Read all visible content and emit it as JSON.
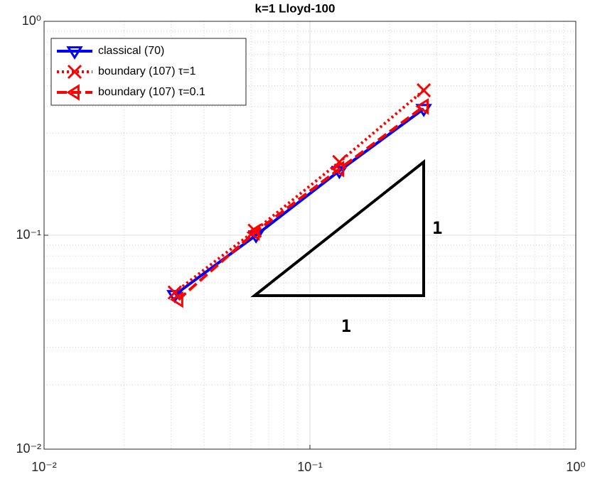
{
  "chart_data": {
    "type": "line",
    "title": "k=1 Lloyd-100",
    "log_x": true,
    "log_y": true,
    "grid": true,
    "legend": "top-left",
    "xlim": [
      0.01,
      1
    ],
    "ylim": [
      0.01,
      1
    ],
    "xticks": [
      {
        "value": 0.01,
        "label": "10⁻²"
      },
      {
        "value": 0.1,
        "label": "10⁻¹"
      },
      {
        "value": 1,
        "label": "10⁰"
      }
    ],
    "yticks": [
      {
        "value": 0.01,
        "label": "10⁻²"
      },
      {
        "value": 0.1,
        "label": "10⁻¹"
      },
      {
        "value": 1,
        "label": "10⁰"
      }
    ],
    "series": [
      {
        "name": "classical (70)",
        "color": "#0000ff",
        "dash": "solid",
        "marker": "down",
        "x": [
          0.031,
          0.0627,
          0.129,
          0.268
        ],
        "values": [
          0.0526,
          0.1,
          0.2,
          0.39
        ]
      },
      {
        "name": "boundary (107) τ=1",
        "color": "#ff0000",
        "dash": "dotted",
        "marker": "x",
        "x": [
          0.031,
          0.062,
          0.129,
          0.268
        ],
        "values": [
          0.054,
          0.105,
          0.22,
          0.476
        ]
      },
      {
        "name": "boundary (107) τ=0.1",
        "color": "#ff0000",
        "dash": "dashed",
        "marker": "left",
        "x": [
          0.032,
          0.062,
          0.129,
          0.268
        ],
        "values": [
          0.05,
          0.103,
          0.204,
          0.4
        ]
      }
    ],
    "annotations": [
      "1",
      "1"
    ]
  }
}
